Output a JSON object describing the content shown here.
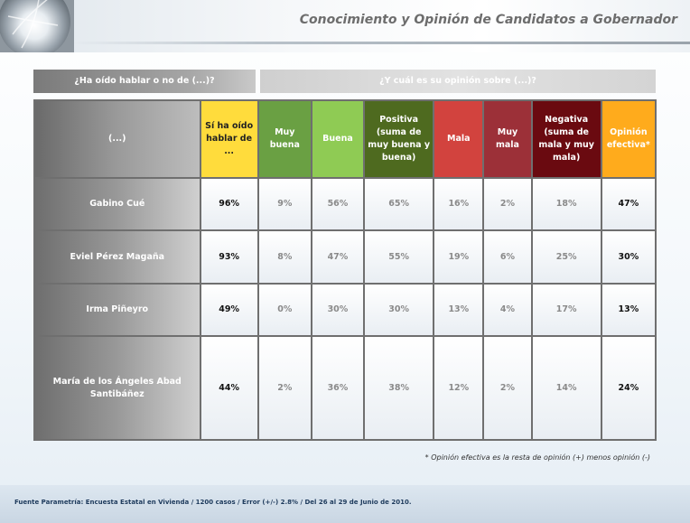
{
  "header": {
    "title": "Conocimiento y Opinión de Candidatos a Gobernador"
  },
  "bands": {
    "left": "¿Ha oído hablar o no de (...)?",
    "right": "¿Y cuál es su opinión sobre (...)?"
  },
  "columns": {
    "q": "(...)",
    "si": "Sí ha oído hablar de ...",
    "muy_buena": "Muy buena",
    "buena": "Buena",
    "positiva": "Positiva (suma de muy buena y buena)",
    "mala": "Mala",
    "muy_mala": "Muy mala",
    "negativa": "Negativa (suma de mala y muy mala)",
    "opinion": "Opinión efectiva*"
  },
  "rows": [
    {
      "name": "Gabino Cué",
      "si": "96%",
      "muy_buena": "9%",
      "buena": "56%",
      "positiva": "65%",
      "mala": "16%",
      "muy_mala": "2%",
      "negativa": "18%",
      "opinion": "47%"
    },
    {
      "name": "Eviel Pérez Magaña",
      "si": "93%",
      "muy_buena": "8%",
      "buena": "47%",
      "positiva": "55%",
      "mala": "19%",
      "muy_mala": "6%",
      "negativa": "25%",
      "opinion": "30%"
    },
    {
      "name": "Irma Piñeyro",
      "si": "49%",
      "muy_buena": "0%",
      "buena": "30%",
      "positiva": "30%",
      "mala": "13%",
      "muy_mala": "4%",
      "negativa": "17%",
      "opinion": "13%"
    },
    {
      "name": "María de los Ángeles Abad Santibáñez",
      "si": "44%",
      "muy_buena": "2%",
      "buena": "36%",
      "positiva": "38%",
      "mala": "12%",
      "muy_mala": "2%",
      "negativa": "14%",
      "opinion": "24%"
    }
  ],
  "footnote": "* Opinión efectiva es la resta de opinión (+) menos opinión (-)",
  "source": "Fuente Parametría: Encuesta Estatal en Vivienda / 1200 casos / Error (+/-) 2.8% / Del 26 al 29 de Junio de 2010.",
  "colors": {
    "si": "#ffdc3c",
    "muy_buena": "#6aa043",
    "buena": "#8fcb54",
    "positiva": "#4e6a1f",
    "mala": "#d2433e",
    "muy_mala": "#9c3038",
    "negativa": "#6a0a10",
    "opinion": "#ffab1c"
  }
}
